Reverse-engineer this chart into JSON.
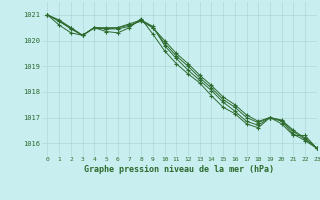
{
  "title": "Graphe pression niveau de la mer (hPa)",
  "background_color": "#c8eef0",
  "plot_bg_color": "#c8eef0",
  "grid_color": "#b0d8d8",
  "line_color": "#2d6a2d",
  "xlim": [
    -0.5,
    23
  ],
  "ylim": [
    1015.5,
    1021.5
  ],
  "yticks": [
    1016,
    1017,
    1018,
    1019,
    1020,
    1021
  ],
  "xticks": [
    0,
    1,
    2,
    3,
    4,
    5,
    6,
    7,
    8,
    9,
    10,
    11,
    12,
    13,
    14,
    15,
    16,
    17,
    18,
    19,
    20,
    21,
    22,
    23
  ],
  "series": [
    [
      1021.0,
      1020.75,
      1020.5,
      1020.2,
      1020.5,
      1020.45,
      1020.45,
      1020.55,
      1020.8,
      1020.55,
      1019.8,
      1019.3,
      1018.85,
      1018.45,
      1018.05,
      1017.6,
      1017.25,
      1016.85,
      1016.7,
      1017.0,
      1016.85,
      1016.35,
      1016.1,
      1015.8
    ],
    [
      1021.0,
      1020.8,
      1020.5,
      1020.2,
      1020.5,
      1020.5,
      1020.5,
      1020.6,
      1020.75,
      1020.5,
      1020.0,
      1019.5,
      1019.1,
      1018.65,
      1018.25,
      1017.8,
      1017.5,
      1017.1,
      1016.85,
      1017.0,
      1016.9,
      1016.5,
      1016.2,
      1015.8
    ],
    [
      1021.0,
      1020.75,
      1020.45,
      1020.2,
      1020.5,
      1020.45,
      1020.5,
      1020.65,
      1020.8,
      1020.5,
      1019.9,
      1019.4,
      1019.0,
      1018.55,
      1018.15,
      1017.7,
      1017.4,
      1017.0,
      1016.8,
      1017.0,
      1016.88,
      1016.45,
      1016.15,
      1015.8
    ],
    [
      1021.0,
      1020.6,
      1020.3,
      1020.2,
      1020.5,
      1020.35,
      1020.3,
      1020.5,
      1020.85,
      1020.25,
      1019.6,
      1019.1,
      1018.7,
      1018.35,
      1017.85,
      1017.4,
      1017.15,
      1016.75,
      1016.6,
      1017.0,
      1016.75,
      1016.3,
      1016.3,
      1015.8
    ]
  ]
}
